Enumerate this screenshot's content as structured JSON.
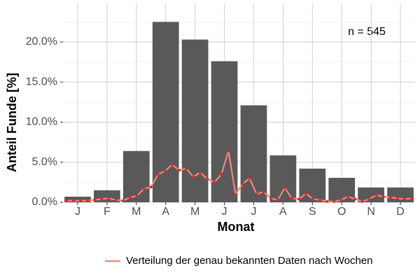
{
  "chart_data": {
    "type": "bar",
    "xlabel": "Monat",
    "ylabel": "Anteil Funde [%]",
    "annotation": "n = 545",
    "categories": [
      "J",
      "F",
      "M",
      "A",
      "M",
      "J",
      "J",
      "A",
      "S",
      "O",
      "N",
      "D"
    ],
    "values": [
      0.7,
      1.5,
      6.4,
      22.5,
      20.3,
      17.6,
      12.1,
      5.85,
      4.2,
      3.05,
      1.85,
      1.85
    ],
    "color": "#595959",
    "line": {
      "name": "Verteilung der genau bekannten Daten nach Wochen",
      "color": "#f4857a",
      "point_color": "#e0282a",
      "values": [
        0.2,
        0.2,
        0.2,
        0.2,
        0.3,
        0.4,
        0.5,
        0.3,
        0.2,
        0.6,
        0.8,
        1.7,
        1.9,
        3.5,
        3.9,
        4.7,
        4.0,
        4.2,
        3.2,
        3.7,
        2.9,
        2.5,
        3.5,
        6.4,
        1.0,
        2.3,
        3.0,
        1.0,
        1.3,
        0.5,
        0.3,
        1.8,
        0.5,
        0.4,
        1.1,
        0.4,
        0.3,
        0.1,
        0.1,
        0.3,
        0.7,
        0.4,
        0.1,
        0.4,
        0.9,
        0.7,
        0.6,
        0.5,
        0.4,
        0.5
      ]
    },
    "ylim": [
      0,
      24.8
    ],
    "yticks": [
      {
        "value": 0,
        "label": "0.0%"
      },
      {
        "value": 5,
        "label": "5.0%"
      },
      {
        "value": 10,
        "label": "10.0%"
      },
      {
        "value": 15,
        "label": "15.0%"
      },
      {
        "value": 20,
        "label": "20.0%"
      }
    ],
    "grid": true,
    "legend": "bottom"
  }
}
